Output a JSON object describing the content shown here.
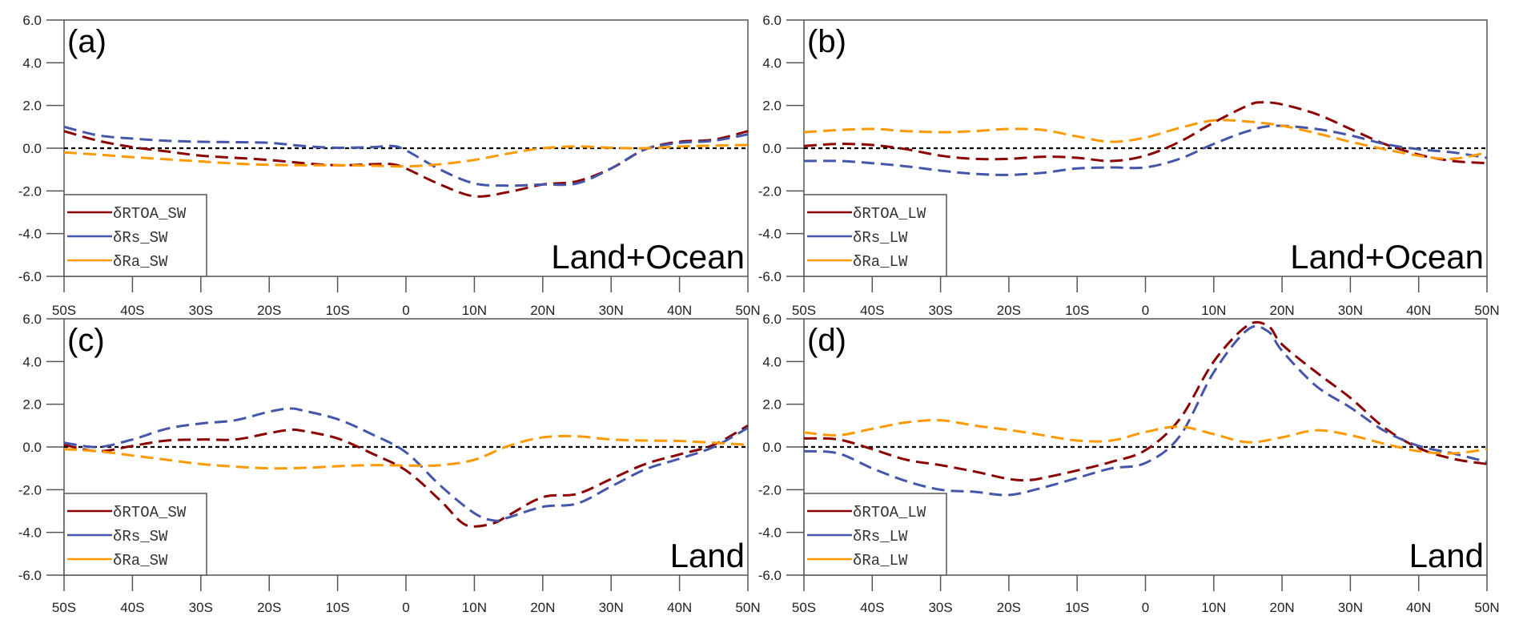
{
  "chart_data": [
    {
      "type": "line",
      "panel": "(a)",
      "region": "Land+Ocean",
      "title": "",
      "xlabel": "",
      "ylabel": "",
      "xlim": [
        -50,
        50
      ],
      "ylim": [
        -6,
        6
      ],
      "x_ticks": [
        -50,
        -40,
        -30,
        -20,
        -10,
        0,
        10,
        20,
        30,
        40,
        50
      ],
      "x_tick_labels": [
        "50S",
        "40S",
        "30S",
        "20S",
        "10S",
        "0",
        "10N",
        "20N",
        "30N",
        "40N",
        "50N"
      ],
      "y_ticks": [
        -6,
        -4,
        -2,
        0,
        2,
        4,
        6
      ],
      "y_tick_labels": [
        "-6.0",
        "-4.0",
        "-2.0",
        "0.0",
        "2.0",
        "4.0",
        "6.0"
      ],
      "reference_line": 0,
      "legend_position": "bottom-left",
      "series": [
        {
          "name": "δRTOA_SW",
          "color": "#8b0000",
          "x": [
            -50,
            -45,
            -40,
            -35,
            -30,
            -25,
            -20,
            -15,
            -10,
            -5,
            -2,
            0,
            5,
            10,
            15,
            20,
            25,
            30,
            35,
            40,
            45,
            50
          ],
          "y": [
            0.8,
            0.35,
            0.05,
            -0.15,
            -0.35,
            -0.45,
            -0.55,
            -0.7,
            -0.8,
            -0.75,
            -0.75,
            -0.95,
            -1.7,
            -2.25,
            -2.05,
            -1.7,
            -1.55,
            -0.95,
            -0.05,
            0.3,
            0.4,
            0.8
          ]
        },
        {
          "name": "δRs_SW",
          "color": "#4455aa",
          "x": [
            -50,
            -45,
            -40,
            -35,
            -30,
            -25,
            -20,
            -15,
            -10,
            -5,
            -2,
            0,
            5,
            10,
            15,
            20,
            25,
            30,
            35,
            40,
            45,
            50
          ],
          "y": [
            1.0,
            0.6,
            0.45,
            0.35,
            0.3,
            0.28,
            0.25,
            0.1,
            0.02,
            0.05,
            0.1,
            -0.1,
            -1.0,
            -1.65,
            -1.75,
            -1.7,
            -1.65,
            -0.95,
            -0.05,
            0.25,
            0.35,
            0.65
          ]
        },
        {
          "name": "δRa_SW",
          "color": "#ff9900",
          "x": [
            -50,
            -45,
            -40,
            -35,
            -30,
            -25,
            -20,
            -15,
            -10,
            -5,
            0,
            5,
            10,
            15,
            20,
            25,
            30,
            35,
            40,
            45,
            50
          ],
          "y": [
            -0.2,
            -0.3,
            -0.42,
            -0.52,
            -0.62,
            -0.72,
            -0.78,
            -0.8,
            -0.8,
            -0.82,
            -0.85,
            -0.75,
            -0.55,
            -0.25,
            0.0,
            0.08,
            0.02,
            0.0,
            0.08,
            0.12,
            0.15
          ]
        }
      ]
    },
    {
      "type": "line",
      "panel": "(b)",
      "region": "Land+Ocean",
      "title": "",
      "xlabel": "",
      "ylabel": "",
      "xlim": [
        -50,
        50
      ],
      "ylim": [
        -6,
        6
      ],
      "x_ticks": [
        -50,
        -40,
        -30,
        -20,
        -10,
        0,
        10,
        20,
        30,
        40,
        50
      ],
      "x_tick_labels": [
        "50S",
        "40S",
        "30S",
        "20S",
        "10S",
        "0",
        "10N",
        "20N",
        "30N",
        "40N",
        "50N"
      ],
      "y_ticks": [
        -6,
        -4,
        -2,
        0,
        2,
        4,
        6
      ],
      "y_tick_labels": [
        "-6.0",
        "-4.0",
        "-2.0",
        "0.0",
        "2.0",
        "4.0",
        "6.0"
      ],
      "reference_line": 0,
      "legend_position": "bottom-left",
      "series": [
        {
          "name": "δRTOA_LW",
          "color": "#8b0000",
          "x": [
            -50,
            -45,
            -40,
            -35,
            -30,
            -25,
            -20,
            -15,
            -10,
            -5,
            0,
            5,
            10,
            15,
            17,
            20,
            25,
            30,
            35,
            40,
            45,
            50
          ],
          "y": [
            0.1,
            0.2,
            0.15,
            -0.05,
            -0.35,
            -0.5,
            -0.5,
            -0.4,
            -0.45,
            -0.6,
            -0.35,
            0.3,
            1.2,
            2.0,
            2.15,
            2.05,
            1.6,
            0.9,
            0.2,
            -0.3,
            -0.6,
            -0.7
          ]
        },
        {
          "name": "δRs_LW",
          "color": "#4455aa",
          "x": [
            -50,
            -45,
            -40,
            -35,
            -30,
            -25,
            -20,
            -15,
            -10,
            -5,
            0,
            5,
            10,
            15,
            19,
            25,
            30,
            35,
            40,
            45,
            50
          ],
          "y": [
            -0.6,
            -0.6,
            -0.7,
            -0.85,
            -1.05,
            -1.2,
            -1.25,
            -1.15,
            -0.95,
            -0.9,
            -0.9,
            -0.5,
            0.2,
            0.8,
            1.05,
            0.9,
            0.6,
            0.2,
            -0.05,
            -0.2,
            -0.45
          ]
        },
        {
          "name": "δRa_LW",
          "color": "#ff9900",
          "x": [
            -50,
            -45,
            -40,
            -35,
            -30,
            -25,
            -20,
            -15,
            -10,
            -5,
            0,
            5,
            10,
            15,
            20,
            25,
            30,
            35,
            40,
            45,
            50
          ],
          "y": [
            0.75,
            0.85,
            0.9,
            0.8,
            0.75,
            0.8,
            0.9,
            0.85,
            0.55,
            0.3,
            0.5,
            0.95,
            1.3,
            1.25,
            1.05,
            0.7,
            0.3,
            -0.05,
            -0.35,
            -0.5,
            -0.2
          ]
        }
      ]
    },
    {
      "type": "line",
      "panel": "(c)",
      "region": "Land",
      "title": "",
      "xlabel": "",
      "ylabel": "",
      "xlim": [
        -50,
        50
      ],
      "ylim": [
        -6,
        6
      ],
      "x_ticks": [
        -50,
        -40,
        -30,
        -20,
        -10,
        0,
        10,
        20,
        30,
        40,
        50
      ],
      "x_tick_labels": [
        "50S",
        "40S",
        "30S",
        "20S",
        "10S",
        "0",
        "10N",
        "20N",
        "30N",
        "40N",
        "50N"
      ],
      "y_ticks": [
        -6,
        -4,
        -2,
        0,
        2,
        4,
        6
      ],
      "y_tick_labels": [
        "-6.0",
        "-4.0",
        "-2.0",
        "0.0",
        "2.0",
        "4.0",
        "6.0"
      ],
      "reference_line": 0,
      "legend_position": "bottom-left",
      "series": [
        {
          "name": "δRTOA_SW",
          "color": "#8b0000",
          "x": [
            -50,
            -45,
            -40,
            -35,
            -30,
            -25,
            -20,
            -17,
            -15,
            -10,
            -5,
            0,
            5,
            8,
            10,
            13,
            15,
            20,
            25,
            30,
            35,
            40,
            45,
            50
          ],
          "y": [
            0.1,
            -0.2,
            0.05,
            0.3,
            0.35,
            0.35,
            0.65,
            0.8,
            0.75,
            0.4,
            -0.3,
            -1.1,
            -2.5,
            -3.5,
            -3.72,
            -3.55,
            -3.2,
            -2.35,
            -2.2,
            -1.5,
            -0.8,
            -0.35,
            0.1,
            1.0
          ]
        },
        {
          "name": "δRs_SW",
          "color": "#4455aa",
          "x": [
            -50,
            -45,
            -40,
            -35,
            -30,
            -25,
            -20,
            -17,
            -15,
            -10,
            -5,
            0,
            5,
            10,
            13,
            15,
            20,
            25,
            30,
            35,
            40,
            45,
            50
          ],
          "y": [
            0.2,
            0.0,
            0.35,
            0.85,
            1.1,
            1.25,
            1.65,
            1.8,
            1.7,
            1.3,
            0.6,
            -0.25,
            -1.8,
            -3.1,
            -3.45,
            -3.3,
            -2.8,
            -2.65,
            -1.85,
            -1.05,
            -0.55,
            0.0,
            0.9
          ]
        },
        {
          "name": "δRa_SW",
          "color": "#ff9900",
          "x": [
            -50,
            -45,
            -40,
            -35,
            -30,
            -25,
            -20,
            -15,
            -10,
            -5,
            0,
            5,
            10,
            15,
            20,
            25,
            30,
            35,
            40,
            45,
            50
          ],
          "y": [
            -0.1,
            -0.2,
            -0.4,
            -0.6,
            -0.8,
            -0.92,
            -1.0,
            -0.98,
            -0.9,
            -0.85,
            -0.87,
            -0.85,
            -0.6,
            0.05,
            0.45,
            0.5,
            0.35,
            0.3,
            0.28,
            0.2,
            0.1
          ]
        }
      ]
    },
    {
      "type": "line",
      "panel": "(d)",
      "region": "Land",
      "title": "",
      "xlabel": "",
      "ylabel": "",
      "xlim": [
        -50,
        50
      ],
      "ylim": [
        -6,
        6
      ],
      "x_ticks": [
        -50,
        -40,
        -30,
        -20,
        -10,
        0,
        10,
        20,
        30,
        40,
        50
      ],
      "x_tick_labels": [
        "50S",
        "40S",
        "30S",
        "20S",
        "10S",
        "0",
        "10N",
        "20N",
        "30N",
        "40N",
        "50N"
      ],
      "y_ticks": [
        -6,
        -4,
        -2,
        0,
        2,
        4,
        6
      ],
      "y_tick_labels": [
        "-6.0",
        "-4.0",
        "-2.0",
        "0.0",
        "2.0",
        "4.0",
        "6.0"
      ],
      "reference_line": 0,
      "legend_position": "bottom-left",
      "series": [
        {
          "name": "δRTOA_LW",
          "color": "#8b0000",
          "x": [
            -50,
            -45,
            -40,
            -35,
            -30,
            -25,
            -20,
            -17,
            -15,
            -10,
            -5,
            0,
            5,
            10,
            15,
            18,
            20,
            25,
            30,
            35,
            40,
            45,
            50
          ],
          "y": [
            0.4,
            0.35,
            -0.1,
            -0.6,
            -0.85,
            -1.15,
            -1.5,
            -1.55,
            -1.45,
            -1.1,
            -0.7,
            -0.15,
            1.3,
            4.0,
            5.7,
            5.65,
            4.8,
            3.5,
            2.3,
            0.9,
            -0.05,
            -0.55,
            -0.8
          ]
        },
        {
          "name": "δRs_LW",
          "color": "#4455aa",
          "x": [
            -50,
            -45,
            -40,
            -35,
            -30,
            -25,
            -20,
            -15,
            -10,
            -5,
            0,
            5,
            10,
            15,
            18,
            20,
            25,
            30,
            35,
            40,
            45,
            50
          ],
          "y": [
            -0.2,
            -0.3,
            -1.0,
            -1.6,
            -2.0,
            -2.1,
            -2.25,
            -1.9,
            -1.45,
            -1.0,
            -0.75,
            0.5,
            3.5,
            5.5,
            5.4,
            4.5,
            2.85,
            1.85,
            0.75,
            0.05,
            -0.3,
            -0.7
          ]
        },
        {
          "name": "δRa_LW",
          "color": "#ff9900",
          "x": [
            -50,
            -45,
            -40,
            -35,
            -30,
            -25,
            -20,
            -15,
            -10,
            -5,
            0,
            5,
            10,
            15,
            20,
            25,
            30,
            35,
            40,
            45,
            50
          ],
          "y": [
            0.68,
            0.55,
            0.85,
            1.15,
            1.25,
            1.0,
            0.8,
            0.55,
            0.3,
            0.3,
            0.7,
            0.95,
            0.6,
            0.22,
            0.45,
            0.78,
            0.55,
            0.15,
            -0.2,
            -0.3,
            -0.1
          ]
        }
      ]
    }
  ]
}
